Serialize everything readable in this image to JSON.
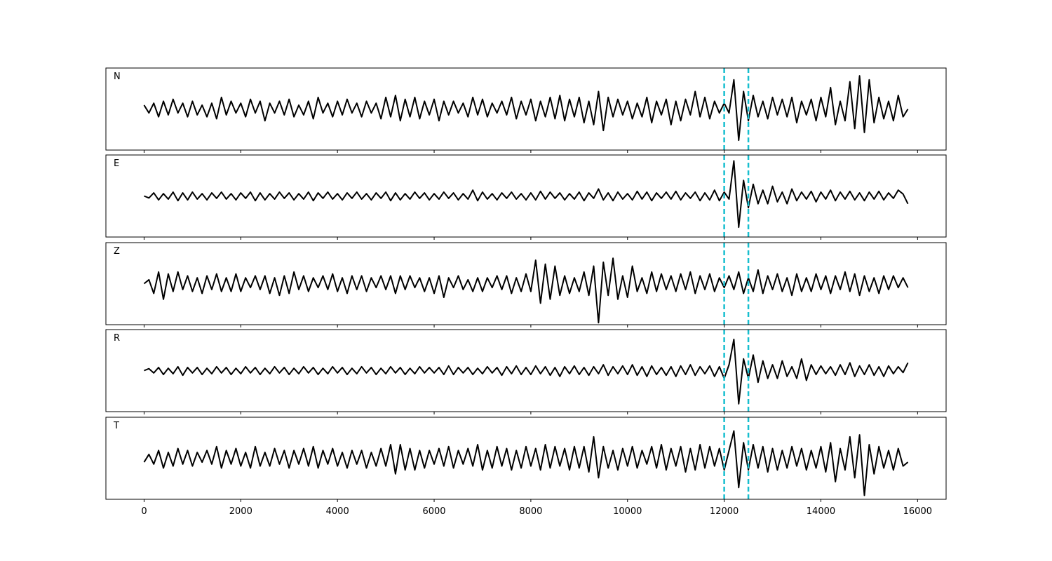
{
  "chart_data": {
    "type": "line",
    "subplots": "stacked",
    "xlim": [
      -790,
      16590
    ],
    "xticks": [
      0,
      2000,
      4000,
      6000,
      8000,
      10000,
      12000,
      14000,
      16000
    ],
    "ylim": [
      -1.05,
      1.05
    ],
    "vlines": [
      12000,
      12500
    ],
    "vline_color": "#17becf",
    "vline_style": "dashed",
    "x": [
      0,
      100,
      200,
      300,
      400,
      500,
      600,
      700,
      800,
      900,
      1000,
      1100,
      1200,
      1300,
      1400,
      1500,
      1600,
      1700,
      1800,
      1900,
      2000,
      2100,
      2200,
      2300,
      2400,
      2500,
      2600,
      2700,
      2800,
      2900,
      3000,
      3100,
      3200,
      3300,
      3400,
      3500,
      3600,
      3700,
      3800,
      3900,
      4000,
      4100,
      4200,
      4300,
      4400,
      4500,
      4600,
      4700,
      4800,
      4900,
      5000,
      5100,
      5200,
      5300,
      5400,
      5500,
      5600,
      5700,
      5800,
      5900,
      6000,
      6100,
      6200,
      6300,
      6400,
      6500,
      6600,
      6700,
      6800,
      6900,
      7000,
      7100,
      7200,
      7300,
      7400,
      7500,
      7600,
      7700,
      7800,
      7900,
      8000,
      8100,
      8200,
      8300,
      8400,
      8500,
      8600,
      8700,
      8800,
      8900,
      9000,
      9100,
      9200,
      9300,
      9400,
      9500,
      9600,
      9700,
      9800,
      9900,
      10000,
      10100,
      10200,
      10300,
      10400,
      10500,
      10600,
      10700,
      10800,
      10900,
      11000,
      11100,
      11200,
      11300,
      11400,
      11500,
      11600,
      11700,
      11800,
      11900,
      12000,
      12100,
      12200,
      12300,
      12400,
      12500,
      12600,
      12700,
      12800,
      12900,
      13000,
      13100,
      13200,
      13300,
      13400,
      13500,
      13600,
      13700,
      13800,
      13900,
      14000,
      14100,
      14200,
      14300,
      14400,
      14500,
      14600,
      14700,
      14800,
      14900,
      15000,
      15100,
      15200,
      15300,
      15400,
      15500,
      15600,
      15700,
      15800
    ],
    "series": [
      {
        "name": "N",
        "color": "#000000",
        "values": [
          0.1,
          -0.1,
          0.15,
          -0.2,
          0.2,
          -0.15,
          0.25,
          -0.1,
          0.15,
          -0.2,
          0.2,
          -0.15,
          0.1,
          -0.2,
          0.15,
          -0.25,
          0.3,
          -0.15,
          0.2,
          -0.1,
          0.15,
          -0.2,
          0.25,
          -0.1,
          0.2,
          -0.3,
          0.15,
          -0.1,
          0.2,
          -0.15,
          0.25,
          -0.2,
          0.1,
          -0.15,
          0.2,
          -0.25,
          0.3,
          -0.1,
          0.15,
          -0.2,
          0.2,
          -0.15,
          0.25,
          -0.1,
          0.15,
          -0.2,
          0.2,
          -0.1,
          0.15,
          -0.25,
          0.3,
          -0.2,
          0.35,
          -0.3,
          0.25,
          -0.2,
          0.3,
          -0.25,
          0.2,
          -0.15,
          0.25,
          -0.3,
          0.2,
          -0.15,
          0.2,
          -0.1,
          0.15,
          -0.2,
          0.3,
          -0.15,
          0.25,
          -0.2,
          0.15,
          -0.1,
          0.2,
          -0.15,
          0.3,
          -0.25,
          0.2,
          -0.15,
          0.25,
          -0.3,
          0.2,
          -0.2,
          0.3,
          -0.25,
          0.35,
          -0.3,
          0.25,
          -0.2,
          0.3,
          -0.35,
          0.2,
          -0.4,
          0.45,
          -0.55,
          0.3,
          -0.2,
          0.25,
          -0.15,
          0.2,
          -0.25,
          0.15,
          -0.2,
          0.3,
          -0.35,
          0.2,
          -0.15,
          0.25,
          -0.4,
          0.2,
          -0.3,
          0.25,
          -0.15,
          0.45,
          -0.2,
          0.3,
          -0.25,
          0.2,
          -0.1,
          0.15,
          -0.1,
          0.75,
          -0.8,
          0.45,
          -0.3,
          0.35,
          -0.2,
          0.2,
          -0.25,
          0.3,
          -0.15,
          0.25,
          -0.2,
          0.3,
          -0.35,
          0.2,
          -0.15,
          0.25,
          -0.3,
          0.3,
          -0.2,
          0.55,
          -0.4,
          0.2,
          -0.3,
          0.7,
          -0.5,
          0.85,
          -0.6,
          0.75,
          -0.35,
          0.3,
          -0.25,
          0.2,
          -0.3,
          0.35,
          -0.2,
          0.0
        ]
      },
      {
        "name": "E",
        "color": "#000000",
        "values": [
          0.0,
          -0.05,
          0.08,
          -0.1,
          0.06,
          -0.08,
          0.1,
          -0.12,
          0.08,
          -0.1,
          0.1,
          -0.08,
          0.06,
          -0.1,
          0.08,
          -0.06,
          0.1,
          -0.08,
          0.06,
          -0.1,
          0.08,
          -0.06,
          0.1,
          -0.12,
          0.08,
          -0.1,
          0.06,
          -0.08,
          0.1,
          -0.06,
          0.08,
          -0.1,
          0.06,
          -0.08,
          0.1,
          -0.12,
          0.08,
          -0.06,
          0.1,
          -0.08,
          0.06,
          -0.1,
          0.08,
          -0.06,
          0.1,
          -0.08,
          0.06,
          -0.1,
          0.08,
          -0.06,
          0.1,
          -0.12,
          0.08,
          -0.1,
          0.06,
          -0.08,
          0.1,
          -0.06,
          0.08,
          -0.1,
          0.06,
          -0.08,
          0.1,
          -0.06,
          0.08,
          -0.1,
          0.06,
          -0.08,
          0.15,
          -0.12,
          0.1,
          -0.08,
          0.06,
          -0.1,
          0.08,
          -0.06,
          0.1,
          -0.08,
          0.06,
          -0.1,
          0.08,
          -0.1,
          0.12,
          -0.08,
          0.1,
          -0.06,
          0.08,
          -0.1,
          0.06,
          -0.08,
          0.1,
          -0.12,
          0.08,
          -0.06,
          0.18,
          -0.1,
          0.08,
          -0.12,
          0.1,
          -0.08,
          0.06,
          -0.1,
          0.12,
          -0.08,
          0.1,
          -0.12,
          0.08,
          -0.06,
          0.1,
          -0.08,
          0.12,
          -0.1,
          0.08,
          -0.06,
          0.1,
          -0.12,
          0.08,
          -0.1,
          0.15,
          -0.12,
          0.1,
          -0.08,
          0.9,
          -0.8,
          0.4,
          -0.3,
          0.3,
          -0.2,
          0.15,
          -0.2,
          0.25,
          -0.15,
          0.1,
          -0.2,
          0.18,
          -0.12,
          0.1,
          -0.08,
          0.12,
          -0.15,
          0.1,
          -0.08,
          0.15,
          -0.12,
          0.1,
          -0.08,
          0.12,
          -0.1,
          0.08,
          -0.12,
          0.1,
          -0.08,
          0.12,
          -0.1,
          0.08,
          -0.06,
          0.15,
          0.05,
          -0.2
        ]
      },
      {
        "name": "Z",
        "color": "#000000",
        "values": [
          0.0,
          0.1,
          -0.25,
          0.3,
          -0.4,
          0.25,
          -0.2,
          0.3,
          -0.15,
          0.2,
          -0.2,
          0.15,
          -0.25,
          0.2,
          -0.15,
          0.25,
          -0.2,
          0.15,
          -0.2,
          0.25,
          -0.2,
          0.15,
          -0.1,
          0.2,
          -0.15,
          0.2,
          -0.25,
          0.15,
          -0.3,
          0.2,
          -0.25,
          0.3,
          -0.15,
          0.2,
          -0.2,
          0.15,
          -0.1,
          0.2,
          -0.15,
          0.25,
          -0.2,
          0.15,
          -0.25,
          0.2,
          -0.15,
          0.2,
          -0.2,
          0.15,
          -0.1,
          0.2,
          -0.15,
          0.2,
          -0.25,
          0.2,
          -0.15,
          0.2,
          -0.1,
          0.15,
          -0.2,
          0.15,
          -0.25,
          0.2,
          -0.35,
          0.15,
          -0.1,
          0.2,
          -0.15,
          0.1,
          -0.2,
          0.15,
          -0.2,
          0.15,
          -0.1,
          0.2,
          -0.15,
          0.2,
          -0.25,
          0.15,
          -0.2,
          0.25,
          -0.2,
          0.6,
          -0.5,
          0.5,
          -0.4,
          0.45,
          -0.3,
          0.2,
          -0.25,
          0.15,
          -0.2,
          0.3,
          -0.3,
          0.45,
          -1.0,
          0.55,
          -0.3,
          0.65,
          -0.4,
          0.2,
          -0.35,
          0.45,
          -0.2,
          0.15,
          -0.25,
          0.3,
          -0.2,
          0.25,
          -0.15,
          0.2,
          -0.2,
          0.25,
          -0.15,
          0.3,
          -0.25,
          0.2,
          -0.15,
          0.25,
          -0.2,
          0.15,
          -0.1,
          0.2,
          -0.15,
          0.3,
          -0.25,
          0.15,
          -0.2,
          0.35,
          -0.25,
          0.2,
          -0.15,
          0.25,
          -0.2,
          0.15,
          -0.3,
          0.25,
          -0.2,
          0.15,
          -0.2,
          0.25,
          -0.15,
          0.2,
          -0.25,
          0.2,
          -0.15,
          0.3,
          -0.2,
          0.25,
          -0.3,
          0.2,
          -0.2,
          0.15,
          -0.25,
          0.2,
          -0.15,
          0.2,
          -0.1,
          0.15,
          -0.1
        ]
      },
      {
        "name": "R",
        "color": "#000000",
        "values": [
          0.0,
          0.05,
          -0.06,
          0.08,
          -0.1,
          0.06,
          -0.08,
          0.1,
          -0.12,
          0.08,
          -0.06,
          0.08,
          -0.1,
          0.06,
          -0.08,
          0.1,
          -0.06,
          0.08,
          -0.1,
          0.06,
          -0.08,
          0.1,
          -0.06,
          0.08,
          -0.1,
          0.06,
          -0.08,
          0.1,
          -0.06,
          0.08,
          -0.1,
          0.06,
          -0.08,
          0.1,
          -0.06,
          0.08,
          -0.1,
          0.06,
          -0.08,
          0.1,
          -0.06,
          0.08,
          -0.1,
          0.06,
          -0.08,
          0.1,
          -0.06,
          0.08,
          -0.1,
          0.06,
          -0.08,
          0.1,
          -0.06,
          0.08,
          -0.1,
          0.06,
          -0.08,
          0.1,
          -0.06,
          0.08,
          -0.06,
          0.08,
          -0.1,
          0.12,
          -0.1,
          0.08,
          -0.06,
          0.08,
          -0.1,
          0.06,
          -0.08,
          0.1,
          -0.06,
          0.08,
          -0.12,
          0.1,
          -0.08,
          0.12,
          -0.1,
          0.08,
          -0.1,
          0.12,
          -0.08,
          0.1,
          -0.12,
          0.08,
          -0.15,
          0.1,
          -0.08,
          0.12,
          -0.1,
          0.08,
          -0.12,
          0.1,
          -0.08,
          0.15,
          -0.12,
          0.1,
          -0.08,
          0.12,
          -0.1,
          0.15,
          -0.12,
          0.1,
          -0.15,
          0.12,
          -0.1,
          0.08,
          -0.12,
          0.1,
          -0.15,
          0.12,
          -0.1,
          0.15,
          -0.12,
          0.1,
          -0.08,
          0.12,
          -0.15,
          0.1,
          -0.2,
          0.15,
          0.8,
          -0.85,
          0.3,
          -0.2,
          0.4,
          -0.3,
          0.25,
          -0.2,
          0.15,
          -0.2,
          0.25,
          -0.15,
          0.1,
          -0.2,
          0.3,
          -0.25,
          0.15,
          -0.1,
          0.12,
          -0.08,
          0.1,
          -0.12,
          0.15,
          -0.1,
          0.2,
          -0.15,
          0.12,
          -0.1,
          0.15,
          -0.12,
          0.1,
          -0.15,
          0.12,
          -0.08,
          0.1,
          -0.05,
          0.2
        ]
      },
      {
        "name": "T",
        "color": "#000000",
        "values": [
          -0.1,
          0.1,
          -0.15,
          0.2,
          -0.25,
          0.15,
          -0.2,
          0.25,
          -0.15,
          0.2,
          -0.2,
          0.15,
          -0.1,
          0.2,
          -0.15,
          0.3,
          -0.25,
          0.2,
          -0.15,
          0.25,
          -0.2,
          0.15,
          -0.25,
          0.3,
          -0.2,
          0.15,
          -0.2,
          0.25,
          -0.15,
          0.2,
          -0.25,
          0.2,
          -0.15,
          0.25,
          -0.2,
          0.3,
          -0.25,
          0.2,
          -0.15,
          0.25,
          -0.2,
          0.15,
          -0.25,
          0.2,
          -0.15,
          0.2,
          -0.25,
          0.15,
          -0.2,
          0.25,
          -0.2,
          0.35,
          -0.4,
          0.35,
          -0.3,
          0.25,
          -0.3,
          0.2,
          -0.25,
          0.2,
          -0.15,
          0.25,
          -0.2,
          0.3,
          -0.25,
          0.2,
          -0.15,
          0.25,
          -0.2,
          0.35,
          -0.3,
          0.2,
          -0.25,
          0.3,
          -0.2,
          0.25,
          -0.3,
          0.2,
          -0.25,
          0.3,
          -0.2,
          0.25,
          -0.3,
          0.35,
          -0.25,
          0.3,
          -0.2,
          0.25,
          -0.3,
          0.3,
          -0.25,
          0.3,
          -0.35,
          0.55,
          -0.5,
          0.3,
          -0.25,
          0.2,
          -0.3,
          0.25,
          -0.2,
          0.3,
          -0.25,
          0.2,
          -0.15,
          0.3,
          -0.25,
          0.35,
          -0.3,
          0.25,
          -0.2,
          0.3,
          -0.35,
          0.25,
          -0.3,
          0.35,
          -0.25,
          0.3,
          -0.2,
          0.25,
          -0.3,
          0.2,
          0.7,
          -0.75,
          0.4,
          -0.3,
          0.35,
          -0.25,
          0.3,
          -0.35,
          0.25,
          -0.3,
          0.2,
          -0.25,
          0.3,
          -0.2,
          0.25,
          -0.3,
          0.2,
          -0.25,
          0.3,
          -0.35,
          0.4,
          -0.6,
          0.25,
          -0.3,
          0.55,
          -0.5,
          0.6,
          -0.95,
          0.35,
          -0.4,
          0.3,
          -0.25,
          0.2,
          -0.3,
          0.25,
          -0.2,
          -0.1
        ]
      }
    ]
  }
}
